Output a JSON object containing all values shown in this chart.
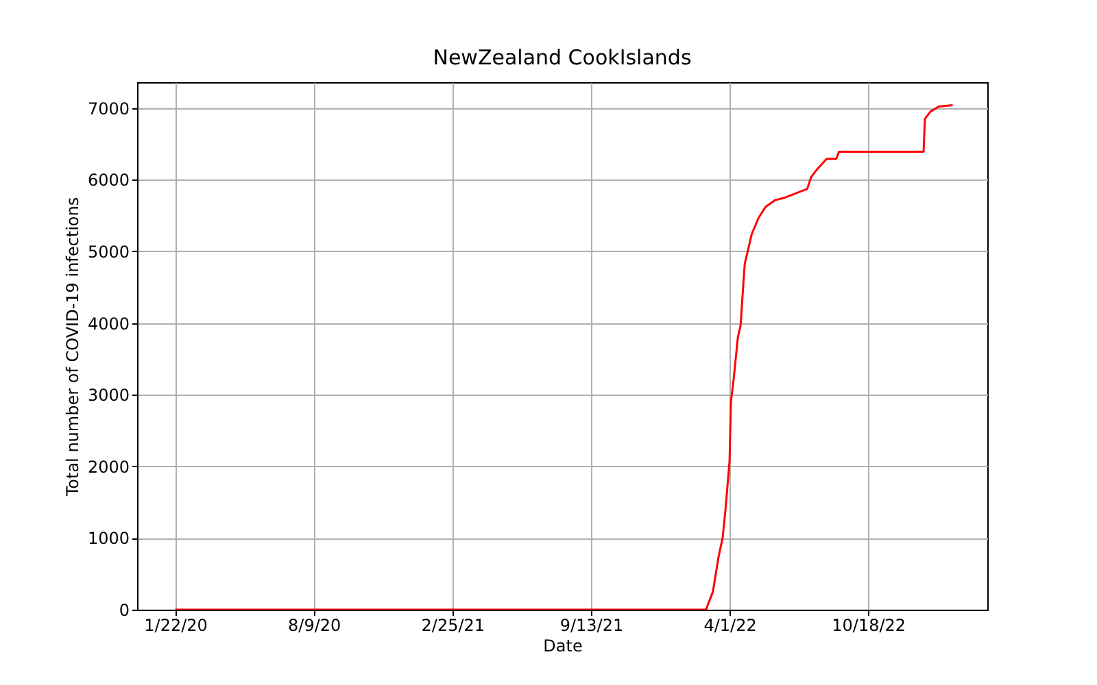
{
  "chart_data": {
    "type": "line",
    "title": "NewZealand CookIslands",
    "xlabel": "Date",
    "ylabel": "Total number of COVID-19 infections",
    "x": [
      "2020-01-22",
      "2022-02-26",
      "2022-03-08",
      "2022-03-16",
      "2022-03-22",
      "2022-03-26",
      "2022-04-01",
      "2022-04-03",
      "2022-04-07",
      "2022-04-13",
      "2022-04-17",
      "2022-04-21",
      "2022-04-23",
      "2022-04-27",
      "2022-05-03",
      "2022-05-13",
      "2022-05-23",
      "2022-06-06",
      "2022-06-20",
      "2022-07-06",
      "2022-07-22",
      "2022-07-28",
      "2022-08-05",
      "2022-08-19",
      "2022-09-02",
      "2022-09-06",
      "2023-01-06",
      "2023-01-08",
      "2023-01-16",
      "2023-01-28",
      "2023-02-17"
    ],
    "series": [
      {
        "color": "#ff0000",
        "values": [
          0,
          0,
          250,
          730,
          1000,
          1380,
          2070,
          2900,
          3220,
          3800,
          3970,
          4560,
          4830,
          4990,
          5240,
          5470,
          5620,
          5715,
          5750,
          5810,
          5870,
          6040,
          6140,
          6290,
          6290,
          6390,
          6390,
          6850,
          6950,
          7020,
          7040
        ]
      }
    ],
    "xlim": [
      "2019-11-28",
      "2023-04-08"
    ],
    "xticks": [
      {
        "value": "2020-01-22",
        "label": "1/22/20"
      },
      {
        "value": "2020-08-09",
        "label": "8/9/20"
      },
      {
        "value": "2021-02-25",
        "label": "2/25/21"
      },
      {
        "value": "2021-09-13",
        "label": "9/13/21"
      },
      {
        "value": "2022-04-01",
        "label": "4/1/22"
      },
      {
        "value": "2022-10-18",
        "label": "10/18/22"
      }
    ],
    "ylim": [
      0,
      7360
    ],
    "yticks": [
      0,
      1000,
      2000,
      3000,
      4000,
      5000,
      6000,
      7000
    ],
    "grid": true,
    "marker": "none",
    "line_style": "solid"
  }
}
